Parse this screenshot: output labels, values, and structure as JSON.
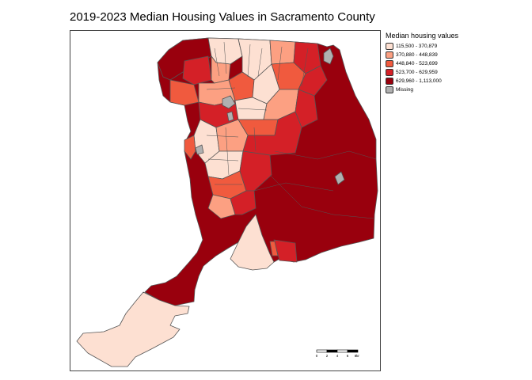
{
  "title": "2019-2023 Median Housing Values in Sacramento County",
  "legend": {
    "title": "Median housing values",
    "items": [
      {
        "label": "115,500 - 370,879",
        "color": "#fde0d2"
      },
      {
        "label": "370,880 - 448,839",
        "color": "#fca082"
      },
      {
        "label": "448,840 - 523,699",
        "color": "#f05a3e"
      },
      {
        "label": "523,700 - 629,959",
        "color": "#d42027"
      },
      {
        "label": "629,960 - 1,113,000",
        "color": "#99000d"
      },
      {
        "label": "Missing",
        "color": "#b0b0b0"
      }
    ]
  },
  "scalebar": {
    "ticks": [
      "0",
      "2",
      "4",
      "6",
      "8"
    ],
    "unit": "km"
  },
  "colors": {
    "boundary": "#555555",
    "frame": "#444444"
  }
}
